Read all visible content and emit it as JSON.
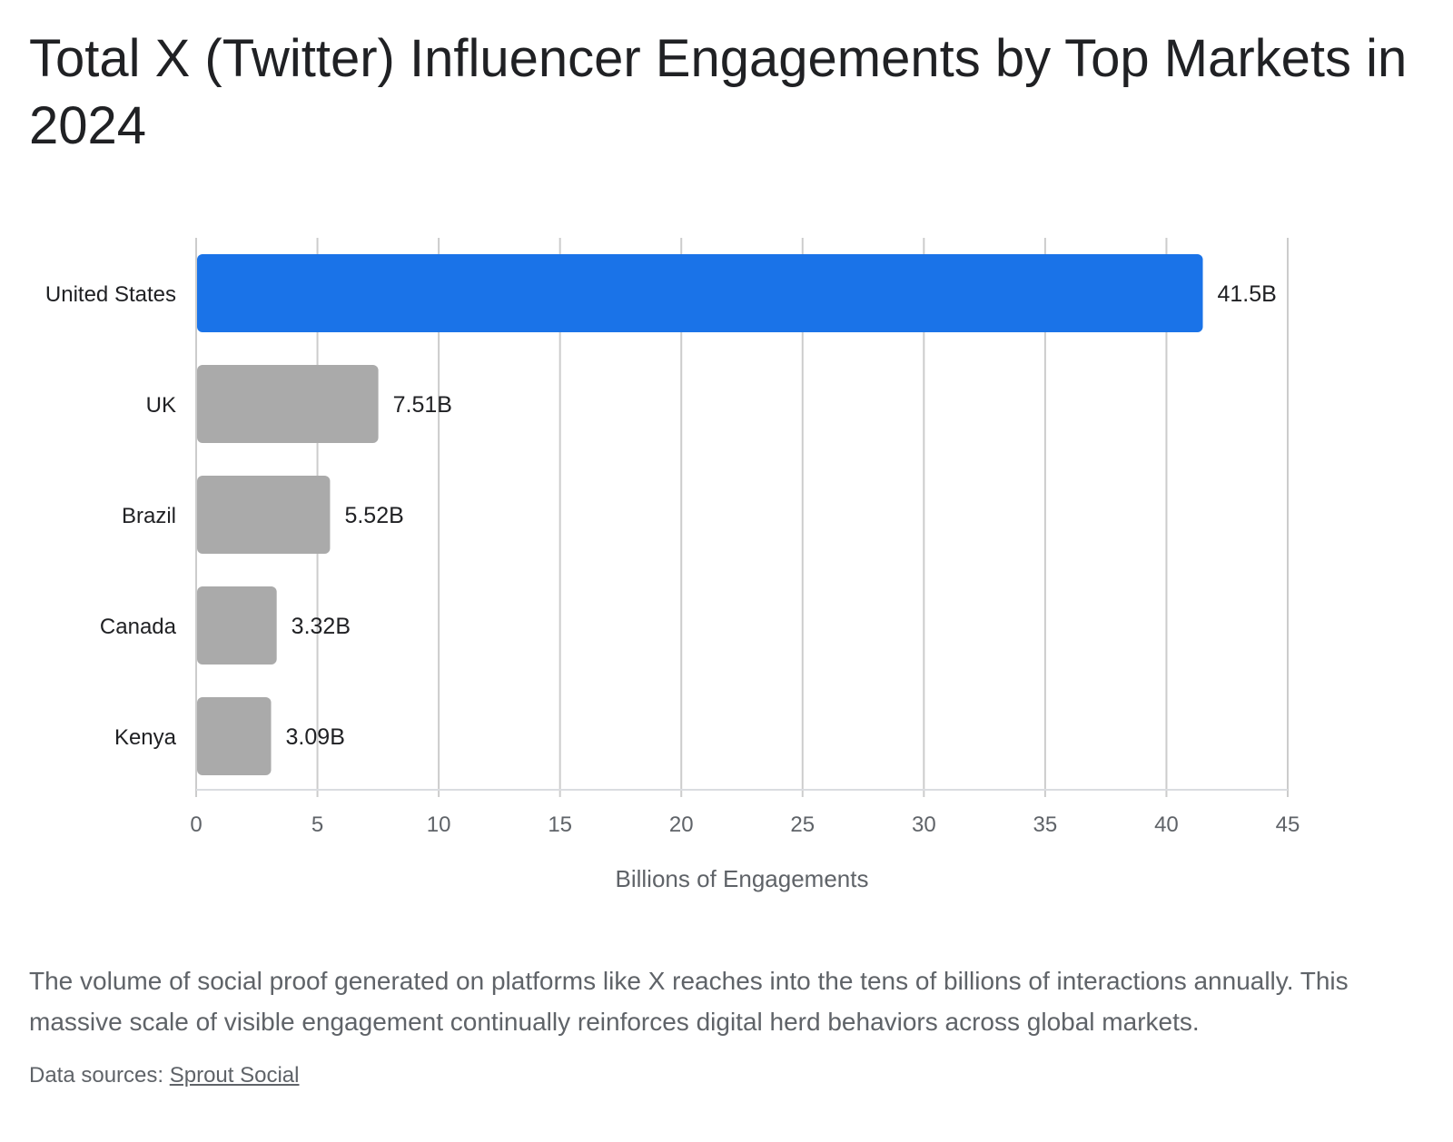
{
  "title": "Total X (Twitter) Influencer Engagements by Top Markets in 2024",
  "caption": "The volume of social proof generated on platforms like X reaches into the tens of billions of interactions annually. This massive scale of visible engagement continually reinforces digital herd behaviors across global markets.",
  "sources": {
    "prefix": "Data sources: ",
    "link_text": "Sprout Social"
  },
  "colors": {
    "highlight": "#1a73e8",
    "bar": "#aaaaaa",
    "grid": "#cccccc"
  },
  "chart_data": {
    "type": "bar",
    "orientation": "horizontal",
    "categories": [
      "United States",
      "UK",
      "Brazil",
      "Canada",
      "Kenya"
    ],
    "values": [
      41.5,
      7.51,
      5.52,
      3.32,
      3.09
    ],
    "value_labels": [
      "41.5B",
      "7.51B",
      "5.52B",
      "3.32B",
      "3.09B"
    ],
    "highlighted_category": "United States",
    "xlabel": "Billions of Engagements",
    "ylabel": "",
    "xlim": [
      0,
      45
    ],
    "xticks": [
      0,
      5,
      10,
      15,
      20,
      25,
      30,
      35,
      40,
      45
    ],
    "grid": true,
    "legend": "none"
  }
}
